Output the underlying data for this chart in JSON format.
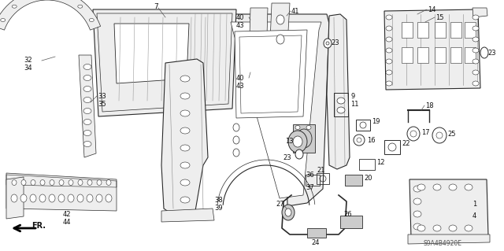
{
  "background_color": "#ffffff",
  "watermark": "S9A4B4920E",
  "figsize": [
    6.4,
    3.19
  ],
  "dpi": 100,
  "line_color": "#2a2a2a",
  "gray_fill": "#d8d8d8",
  "light_fill": "#eeeeee",
  "hatch_color": "#888888"
}
